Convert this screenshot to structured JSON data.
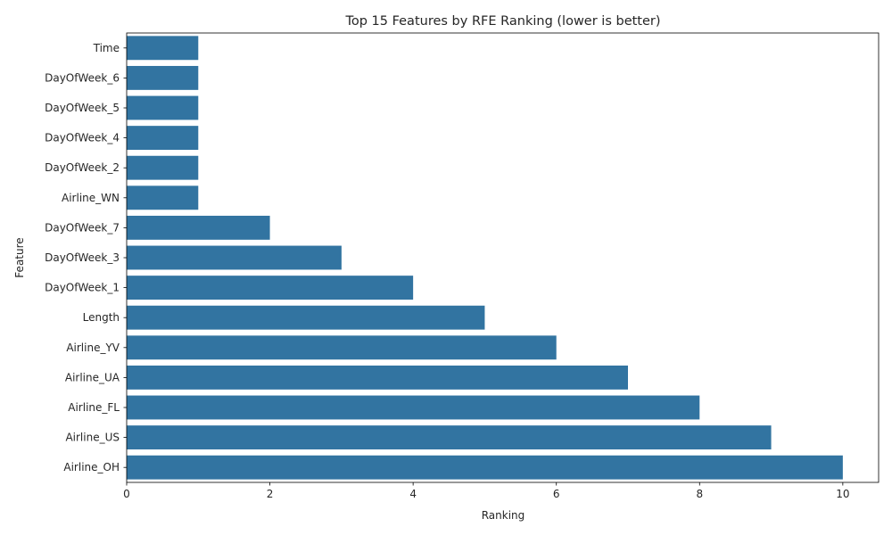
{
  "chart_data": {
    "type": "bar",
    "orientation": "horizontal",
    "title": "Top 15 Features by RFE Ranking (lower is better)",
    "xlabel": "Ranking",
    "ylabel": "Feature",
    "categories": [
      "Time",
      "DayOfWeek_6",
      "DayOfWeek_5",
      "DayOfWeek_4",
      "DayOfWeek_2",
      "Airline_WN",
      "DayOfWeek_7",
      "DayOfWeek_3",
      "DayOfWeek_1",
      "Length",
      "Airline_YV",
      "Airline_UA",
      "Airline_FL",
      "Airline_US",
      "Airline_OH"
    ],
    "values": [
      1,
      1,
      1,
      1,
      1,
      1,
      2,
      3,
      4,
      5,
      6,
      7,
      8,
      9,
      10
    ],
    "xlim": [
      0,
      10.5
    ],
    "xticks": [
      "0",
      "2",
      "4",
      "6",
      "8",
      "10"
    ],
    "bar_color": "#3274a1",
    "grid": false,
    "legend": "none"
  }
}
